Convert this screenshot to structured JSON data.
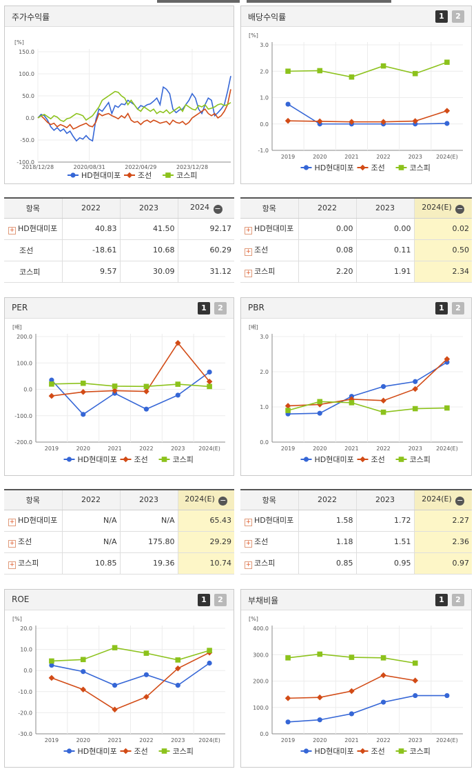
{
  "colors": {
    "hd": "#3566d6",
    "ship": "#d24b16",
    "kospi": "#8cc21c"
  },
  "legend": [
    "HD현대미포",
    "조선",
    "코스피"
  ],
  "panels": {
    "stock": {
      "title": "주가수익률"
    },
    "div": {
      "title": "배당수익률",
      "page1": "1",
      "page2": "2"
    },
    "per": {
      "title": "PER",
      "page1": "1",
      "page2": "2"
    },
    "pbr": {
      "title": "PBR",
      "page1": "1",
      "page2": "2"
    },
    "roe": {
      "title": "ROE",
      "page1": "1",
      "page2": "2"
    },
    "debt": {
      "title": "부채비율",
      "page1": "1",
      "page2": "2"
    }
  },
  "chart_data": [
    {
      "id": "stock",
      "type": "line",
      "title": "주가수익률",
      "unit": "[%]",
      "yticks": [
        "150.0",
        "100.0",
        "50.0",
        "0.0",
        "-50.0",
        "-100.0"
      ],
      "ylim": [
        -100,
        150
      ],
      "xticks": [
        "2018/12/28",
        "2020/08/31",
        "2022/04/29",
        "2023/12/28"
      ],
      "x_range": [
        0,
        120
      ],
      "xtick_pos": [
        0,
        32,
        64,
        96
      ],
      "series": [
        {
          "name": "HD현대미포",
          "x": [
            0,
            2,
            4,
            6,
            8,
            10,
            12,
            14,
            16,
            18,
            20,
            22,
            24,
            26,
            28,
            30,
            32,
            34,
            36,
            38,
            40,
            42,
            44,
            46,
            48,
            50,
            52,
            54,
            56,
            58,
            60,
            62,
            64,
            66,
            68,
            70,
            72,
            74,
            76,
            78,
            80,
            82,
            84,
            86,
            88,
            90,
            92,
            94,
            96,
            98,
            100,
            102,
            104,
            106,
            108,
            110,
            112,
            114,
            116,
            118,
            120
          ],
          "values": [
            0,
            8,
            5,
            -5,
            -20,
            -28,
            -22,
            -30,
            -25,
            -35,
            -30,
            -42,
            -52,
            -45,
            -48,
            -40,
            -48,
            -52,
            -5,
            20,
            15,
            25,
            35,
            10,
            28,
            24,
            32,
            30,
            40,
            35,
            30,
            20,
            28,
            25,
            30,
            32,
            38,
            45,
            30,
            70,
            65,
            55,
            20,
            12,
            18,
            20,
            30,
            40,
            55,
            45,
            20,
            10,
            30,
            45,
            40,
            5,
            12,
            20,
            30,
            60,
            95
          ]
        },
        {
          "name": "조선",
          "x": [
            0,
            2,
            4,
            6,
            8,
            10,
            12,
            14,
            16,
            18,
            20,
            22,
            24,
            26,
            28,
            30,
            32,
            34,
            36,
            38,
            40,
            42,
            44,
            46,
            48,
            50,
            52,
            54,
            56,
            58,
            60,
            62,
            64,
            66,
            68,
            70,
            72,
            74,
            76,
            78,
            80,
            82,
            84,
            86,
            88,
            90,
            92,
            94,
            96,
            98,
            100,
            102,
            104,
            106,
            108,
            110,
            112,
            114,
            116,
            118,
            120
          ],
          "values": [
            0,
            5,
            -2,
            -10,
            -15,
            -12,
            -20,
            -15,
            -18,
            -22,
            -15,
            -25,
            -22,
            -18,
            -15,
            -12,
            -18,
            -20,
            -10,
            10,
            5,
            8,
            10,
            5,
            2,
            -2,
            5,
            0,
            10,
            -5,
            -10,
            -8,
            -15,
            -8,
            -5,
            -10,
            -5,
            -8,
            -12,
            -10,
            -8,
            -15,
            -5,
            -10,
            -12,
            -8,
            -15,
            -10,
            0,
            5,
            10,
            15,
            20,
            10,
            5,
            10,
            0,
            5,
            15,
            30,
            65
          ]
        },
        {
          "name": "코스피",
          "x": [
            0,
            2,
            4,
            6,
            8,
            10,
            12,
            14,
            16,
            18,
            20,
            22,
            24,
            26,
            28,
            30,
            32,
            34,
            36,
            38,
            40,
            42,
            44,
            46,
            48,
            50,
            52,
            54,
            56,
            58,
            60,
            62,
            64,
            66,
            68,
            70,
            72,
            74,
            76,
            78,
            80,
            82,
            84,
            86,
            88,
            90,
            92,
            94,
            96,
            98,
            100,
            102,
            104,
            106,
            108,
            110,
            112,
            114,
            116,
            118,
            120
          ],
          "values": [
            0,
            5,
            8,
            3,
            -2,
            5,
            2,
            -5,
            -8,
            -2,
            0,
            5,
            10,
            8,
            5,
            -5,
            0,
            5,
            15,
            25,
            40,
            45,
            50,
            55,
            60,
            58,
            50,
            45,
            30,
            40,
            30,
            20,
            15,
            25,
            20,
            15,
            20,
            10,
            15,
            12,
            18,
            10,
            15,
            20,
            25,
            15,
            30,
            25,
            20,
            18,
            28,
            25,
            30,
            20,
            22,
            25,
            30,
            32,
            28,
            30,
            35
          ]
        }
      ]
    },
    {
      "id": "div",
      "type": "line",
      "title": "배당수익률",
      "unit": "[%]",
      "yticks": [
        "3.0",
        "2.0",
        "1.0",
        "0.0",
        "-1.0"
      ],
      "ylim": [
        -1,
        3
      ],
      "categories": [
        "2019",
        "2020",
        "2021",
        "2022",
        "2023",
        "2024(E)"
      ],
      "series": [
        {
          "name": "HD현대미포",
          "values": [
            0.75,
            0.0,
            0.0,
            0.0,
            0.0,
            0.02
          ]
        },
        {
          "name": "조선",
          "values": [
            0.12,
            0.1,
            0.08,
            0.08,
            0.11,
            0.5
          ]
        },
        {
          "name": "코스피",
          "values": [
            2.0,
            2.02,
            1.78,
            2.2,
            1.91,
            2.34
          ]
        }
      ]
    },
    {
      "id": "per",
      "type": "line",
      "title": "PER",
      "unit": "[배]",
      "yticks": [
        "200.0",
        "100.0",
        "0.0",
        "-100.0",
        "-200.0"
      ],
      "ylim": [
        -200,
        200
      ],
      "categories": [
        "2019",
        "2020",
        "2021",
        "2022",
        "2023",
        "2024(E)"
      ],
      "series": [
        {
          "name": "HD현대미포",
          "values": [
            35,
            -95,
            -15,
            -75,
            -22,
            65.43
          ]
        },
        {
          "name": "조선",
          "values": [
            -25,
            -10,
            -5,
            -8,
            175.8,
            29.29
          ]
        },
        {
          "name": "코스피",
          "values": [
            20,
            23,
            12,
            10.85,
            19.36,
            10.74
          ]
        }
      ]
    },
    {
      "id": "pbr",
      "type": "line",
      "title": "PBR",
      "unit": "[배]",
      "yticks": [
        "3.0",
        "2.0",
        "1.0",
        "0.0"
      ],
      "ylim": [
        0,
        3
      ],
      "categories": [
        "2019",
        "2020",
        "2021",
        "2022",
        "2023",
        "2024(E)"
      ],
      "series": [
        {
          "name": "HD현대미포",
          "values": [
            0.8,
            0.82,
            1.3,
            1.58,
            1.72,
            2.27
          ]
        },
        {
          "name": "조선",
          "values": [
            1.03,
            1.07,
            1.22,
            1.18,
            1.51,
            2.36
          ]
        },
        {
          "name": "코스피",
          "values": [
            0.9,
            1.15,
            1.12,
            0.85,
            0.95,
            0.97
          ]
        }
      ]
    },
    {
      "id": "roe",
      "type": "line",
      "title": "ROE",
      "unit": "[%]",
      "yticks": [
        "20.0",
        "10.0",
        "0.0",
        "-10.0",
        "-20.0",
        "-30.0"
      ],
      "ylim": [
        -30,
        20
      ],
      "categories": [
        "2019",
        "2020",
        "2021",
        "2022",
        "2023",
        "2024(E)"
      ],
      "series": [
        {
          "name": "HD현대미포",
          "values": [
            2.5,
            -0.5,
            -7,
            -2,
            -7,
            3.5
          ]
        },
        {
          "name": "조선",
          "values": [
            -3.5,
            -9,
            -18.5,
            -12.5,
            1,
            8.5
          ]
        },
        {
          "name": "코스피",
          "values": [
            4.5,
            5.2,
            10.8,
            8.2,
            5,
            9.5
          ]
        }
      ]
    },
    {
      "id": "debt",
      "type": "line",
      "title": "부채비율",
      "unit": "[%]",
      "yticks": [
        "400.0",
        "300.0",
        "200.0",
        "100.0",
        "0.0"
      ],
      "ylim": [
        0,
        400
      ],
      "categories": [
        "2019",
        "2020",
        "2021",
        "2022",
        "2023",
        "2024(E)"
      ],
      "series": [
        {
          "name": "HD현대미포",
          "values": [
            45,
            53,
            76,
            120,
            145,
            145
          ]
        },
        {
          "name": "조선",
          "values": [
            135,
            138,
            162,
            222,
            202,
            null
          ]
        },
        {
          "name": "코스피",
          "values": [
            288,
            302,
            290,
            288,
            268,
            null
          ]
        }
      ]
    }
  ],
  "tables": {
    "stock": {
      "headers": [
        "항목",
        "2022",
        "2023",
        "2024"
      ],
      "rows": [
        {
          "name": "HD현대미포",
          "vals": [
            "40.83",
            "41.50",
            "92.17"
          ]
        },
        {
          "name": "조선",
          "vals": [
            "-18.61",
            "10.68",
            "60.29"
          ]
        },
        {
          "name": "코스피",
          "vals": [
            "9.57",
            "30.09",
            "31.12"
          ]
        }
      ]
    },
    "div": {
      "headers": [
        "항목",
        "2022",
        "2023",
        "2024(E)"
      ],
      "rows": [
        {
          "name": "HD현대미포",
          "vals": [
            "0.00",
            "0.00",
            "0.02"
          ]
        },
        {
          "name": "조선",
          "vals": [
            "0.08",
            "0.11",
            "0.50"
          ]
        },
        {
          "name": "코스피",
          "vals": [
            "2.20",
            "1.91",
            "2.34"
          ]
        }
      ]
    },
    "per": {
      "headers": [
        "항목",
        "2022",
        "2023",
        "2024(E)"
      ],
      "rows": [
        {
          "name": "HD현대미포",
          "vals": [
            "N/A",
            "N/A",
            "65.43"
          ]
        },
        {
          "name": "조선",
          "vals": [
            "N/A",
            "175.80",
            "29.29"
          ]
        },
        {
          "name": "코스피",
          "vals": [
            "10.85",
            "19.36",
            "10.74"
          ]
        }
      ]
    },
    "pbr": {
      "headers": [
        "항목",
        "2022",
        "2023",
        "2024(E)"
      ],
      "rows": [
        {
          "name": "HD현대미포",
          "vals": [
            "1.58",
            "1.72",
            "2.27"
          ]
        },
        {
          "name": "조선",
          "vals": [
            "1.18",
            "1.51",
            "2.36"
          ]
        },
        {
          "name": "코스피",
          "vals": [
            "0.85",
            "0.95",
            "0.97"
          ]
        }
      ]
    }
  }
}
